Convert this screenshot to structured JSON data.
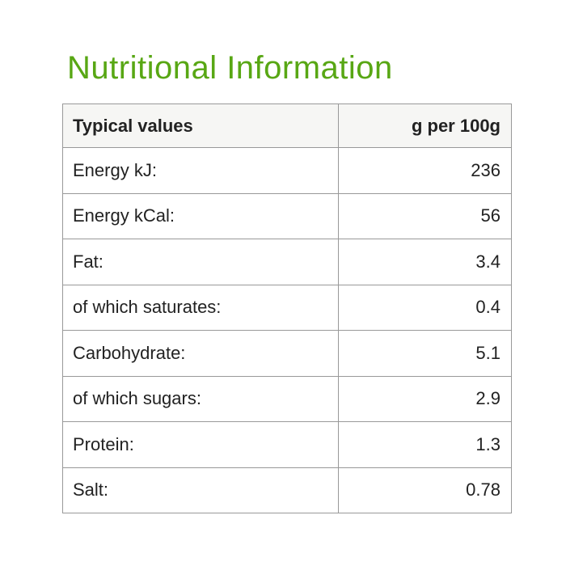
{
  "colors": {
    "accent_green": "#58a714",
    "border": "#999999",
    "header_bg": "#f6f6f4",
    "row_bg": "#ffffff",
    "text": "#222222"
  },
  "page": {
    "title": "Nutritional Information"
  },
  "table": {
    "header": {
      "label": "Typical values",
      "value": "g per 100g"
    },
    "rows": [
      {
        "label": "Energy kJ:",
        "value": "236"
      },
      {
        "label": "Energy kCal:",
        "value": "56"
      },
      {
        "label": "Fat:",
        "value": "3.4"
      },
      {
        "label": "of which saturates:",
        "value": "0.4"
      },
      {
        "label": "Carbohydrate:",
        "value": "5.1"
      },
      {
        "label": "of which sugars:",
        "value": "2.9"
      },
      {
        "label": "Protein:",
        "value": "1.3"
      },
      {
        "label": "Salt:",
        "value": "0.78"
      }
    ]
  }
}
